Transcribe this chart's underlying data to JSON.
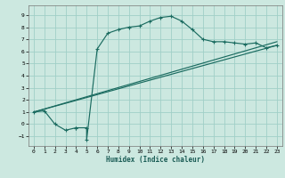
{
  "title": "",
  "xlabel": "Humidex (Indice chaleur)",
  "bg_color": "#cce8e0",
  "grid_color": "#a0cfc7",
  "line_color": "#1a6b60",
  "xlim": [
    -0.5,
    23.5
  ],
  "ylim": [
    -1.8,
    9.8
  ],
  "xticks": [
    0,
    1,
    2,
    3,
    4,
    5,
    6,
    7,
    8,
    9,
    10,
    11,
    12,
    13,
    14,
    15,
    16,
    17,
    18,
    19,
    20,
    21,
    22,
    23
  ],
  "yticks": [
    -1,
    0,
    1,
    2,
    3,
    4,
    5,
    6,
    7,
    8,
    9
  ],
  "series1_x": [
    0,
    1,
    2,
    3,
    4,
    4,
    5,
    5,
    6,
    7,
    8,
    9,
    10,
    11,
    12,
    13,
    14,
    15,
    16,
    17,
    18,
    19,
    20,
    21,
    22,
    23
  ],
  "series1_y": [
    1.0,
    1.1,
    0.0,
    -0.5,
    -0.3,
    -0.3,
    -0.3,
    -1.3,
    6.2,
    7.5,
    7.8,
    8.0,
    8.1,
    8.5,
    8.8,
    8.9,
    8.5,
    7.8,
    7.0,
    6.8,
    6.8,
    6.7,
    6.6,
    6.7,
    6.3,
    6.5
  ],
  "series2_x": [
    0,
    23
  ],
  "series2_y": [
    1.0,
    6.5
  ],
  "series3_x": [
    0,
    23
  ],
  "series3_y": [
    1.0,
    6.8
  ]
}
